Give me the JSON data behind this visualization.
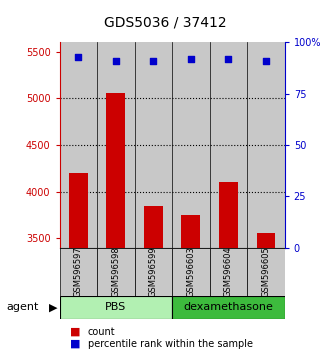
{
  "title": "GDS5036 / 37412",
  "samples": [
    "GSM596597",
    "GSM596598",
    "GSM596599",
    "GSM596603",
    "GSM596604",
    "GSM596605"
  ],
  "counts": [
    4200,
    5060,
    3850,
    3750,
    4100,
    3560
  ],
  "percentiles": [
    93,
    91,
    91,
    92,
    92,
    91
  ],
  "bar_color": "#CC0000",
  "dot_color": "#0000CC",
  "ylim_left": [
    3400,
    5600
  ],
  "ylim_right": [
    0,
    100
  ],
  "yticks_left": [
    3500,
    4000,
    4500,
    5000,
    5500
  ],
  "yticks_right": [
    0,
    25,
    50,
    75,
    100
  ],
  "ytick_labels_right": [
    "0",
    "25",
    "50",
    "75",
    "100%"
  ],
  "grid_values": [
    4000,
    4500,
    5000
  ],
  "left_axis_color": "#CC0000",
  "right_axis_color": "#0000CC",
  "sample_bg": "#c8c8c8",
  "pbs_color": "#b2f0b2",
  "dexa_color": "#3dbb3d",
  "agent_label": "agent",
  "pbs_label": "PBS",
  "dexa_label": "dexamethasone",
  "legend_count_label": "count",
  "legend_pct_label": "percentile rank within the sample",
  "pbs_count": 3,
  "dexa_count": 3
}
